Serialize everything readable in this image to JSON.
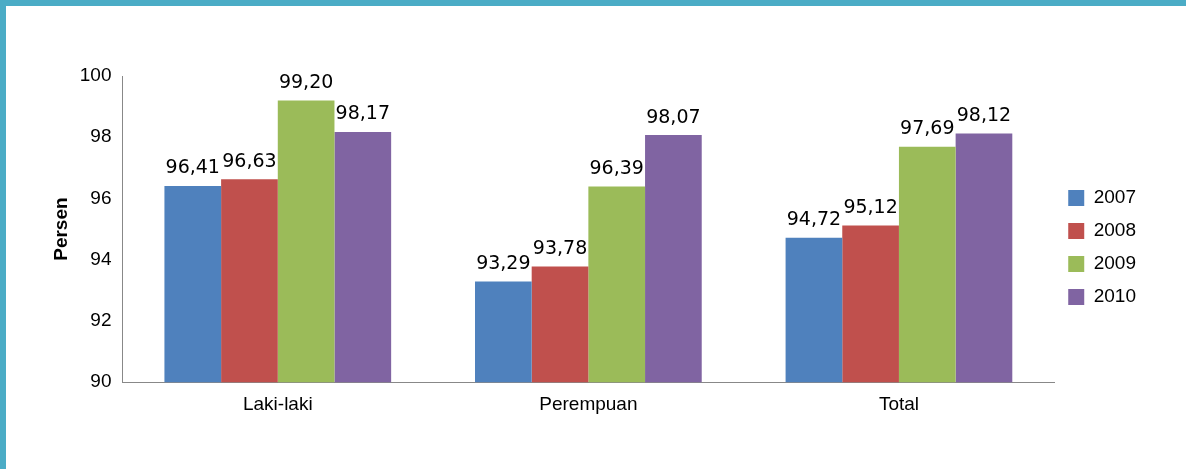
{
  "chart_data": {
    "type": "bar",
    "ylabel": "Persen",
    "categories": [
      "Laki-laki",
      "Perempuan",
      "Total"
    ],
    "series": [
      {
        "name": "2007",
        "color": "#4f81bd",
        "values": [
          96.41,
          93.29,
          94.72
        ],
        "value_labels": [
          "96,41",
          "93,29",
          "94,72"
        ]
      },
      {
        "name": "2008",
        "color": "#c0504d",
        "values": [
          96.63,
          93.78,
          95.12
        ],
        "value_labels": [
          "96,63",
          "93,78",
          "95,12"
        ]
      },
      {
        "name": "2009",
        "color": "#9bbb59",
        "values": [
          99.2,
          96.39,
          97.69
        ],
        "value_labels": [
          "99,20",
          "96,39",
          "97,69"
        ]
      },
      {
        "name": "2010",
        "color": "#8064a2",
        "values": [
          98.17,
          98.07,
          98.12
        ],
        "value_labels": [
          "98,17",
          "98,07",
          "98,12"
        ]
      }
    ],
    "ylim": [
      90,
      100
    ],
    "yticks": [
      90,
      92,
      94,
      96,
      98,
      100
    ],
    "legend": "right"
  }
}
